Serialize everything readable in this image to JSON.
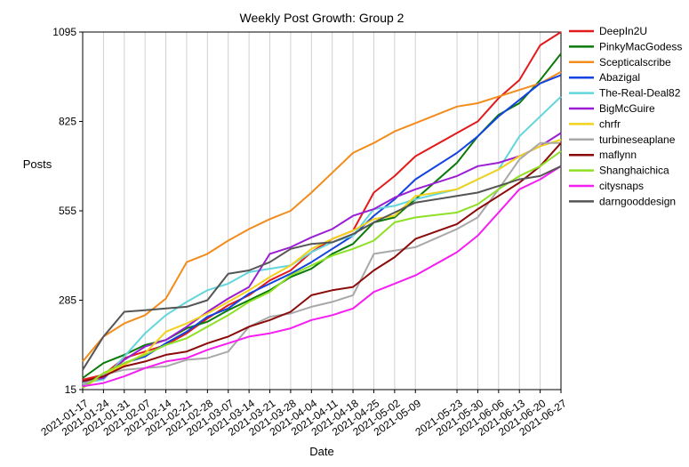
{
  "chart_data": {
    "type": "line",
    "title": "Weekly Post Growth: Group 2",
    "xlabel": "Date",
    "ylabel": "Posts",
    "yticks": [
      15,
      285,
      555,
      825,
      1095
    ],
    "ylim": [
      15,
      1095
    ],
    "grid": "vertical lines at each x tick",
    "legend_position": "right",
    "x": [
      "2021-01-17",
      "2021-01-24",
      "2021-01-31",
      "2021-02-07",
      "2021-02-14",
      "2021-02-21",
      "2021-02-28",
      "2021-03-07",
      "2021-03-14",
      "2021-03-21",
      "2021-03-28",
      "2021-04-04",
      "2021-04-11",
      "2021-04-18",
      "2021-04-25",
      "2021-05-02",
      "2021-05-09",
      "2021-05-23",
      "2021-05-30",
      "2021-06-06",
      "2021-06-13",
      "2021-06-20",
      "2021-06-27"
    ],
    "series": [
      {
        "name": "DeepIn2U",
        "color": "#e31a1c",
        "values": [
          45,
          60,
          110,
          130,
          150,
          185,
          230,
          270,
          300,
          345,
          375,
          430,
          470,
          495,
          610,
          660,
          720,
          790,
          825,
          895,
          950,
          1055,
          1095
        ]
      },
      {
        "name": "PinkyMacGodess",
        "color": "#0b7a0b",
        "values": [
          50,
          95,
          120,
          150,
          165,
          200,
          220,
          255,
          285,
          315,
          355,
          380,
          425,
          455,
          520,
          535,
          590,
          700,
          780,
          845,
          880,
          950,
          1030
        ]
      },
      {
        "name": "Scepticalscribe",
        "color": "#f28c1c",
        "values": [
          100,
          175,
          215,
          240,
          290,
          400,
          425,
          465,
          500,
          530,
          555,
          610,
          670,
          730,
          760,
          795,
          820,
          870,
          880,
          900,
          920,
          940,
          975
        ]
      },
      {
        "name": "Abazigal",
        "color": "#1443e0",
        "values": [
          30,
          55,
          95,
          115,
          155,
          190,
          235,
          260,
          305,
          335,
          365,
          400,
          440,
          480,
          540,
          590,
          650,
          730,
          780,
          840,
          890,
          940,
          965
        ]
      },
      {
        "name": "The-Real-Deal82",
        "color": "#63d6dc",
        "values": [
          35,
          45,
          115,
          185,
          240,
          280,
          315,
          335,
          370,
          380,
          390,
          430,
          460,
          480,
          560,
          570,
          590,
          620,
          650,
          680,
          780,
          840,
          900
        ]
      },
      {
        "name": "BigMcGuire",
        "color": "#9b1ed4",
        "values": [
          40,
          50,
          105,
          145,
          165,
          205,
          250,
          290,
          325,
          425,
          445,
          475,
          500,
          540,
          560,
          595,
          620,
          660,
          690,
          700,
          720,
          750,
          790
        ]
      },
      {
        "name": "chrfr",
        "color": "#f2d21c",
        "values": [
          20,
          60,
          90,
          125,
          190,
          215,
          245,
          280,
          315,
          355,
          390,
          440,
          470,
          495,
          530,
          540,
          600,
          620,
          650,
          680,
          720,
          750,
          770
        ]
      },
      {
        "name": "turbineseaplane",
        "color": "#a8a8a8",
        "values": [
          30,
          60,
          75,
          80,
          85,
          105,
          110,
          130,
          205,
          235,
          245,
          265,
          280,
          300,
          425,
          435,
          445,
          500,
          535,
          620,
          710,
          760,
          760
        ]
      },
      {
        "name": "maflynn",
        "color": "#8b0a0a",
        "values": [
          40,
          55,
          85,
          100,
          120,
          130,
          155,
          175,
          205,
          225,
          250,
          300,
          315,
          325,
          375,
          415,
          470,
          515,
          560,
          600,
          640,
          690,
          760
        ]
      },
      {
        "name": "Shanghaichica",
        "color": "#8ee024",
        "values": [
          20,
          65,
          95,
          120,
          150,
          170,
          205,
          240,
          280,
          310,
          360,
          390,
          420,
          440,
          465,
          520,
          535,
          550,
          575,
          620,
          660,
          690,
          735
        ]
      },
      {
        "name": "citysnaps",
        "color": "#f41ff0",
        "values": [
          25,
          35,
          55,
          80,
          100,
          110,
          135,
          155,
          175,
          185,
          200,
          225,
          240,
          260,
          310,
          335,
          360,
          430,
          480,
          550,
          620,
          650,
          690
        ]
      },
      {
        "name": "darngooddesign",
        "color": "#555555",
        "values": [
          75,
          175,
          250,
          255,
          260,
          265,
          285,
          365,
          375,
          400,
          440,
          455,
          460,
          485,
          520,
          550,
          580,
          600,
          610,
          630,
          650,
          660,
          690
        ]
      }
    ]
  }
}
